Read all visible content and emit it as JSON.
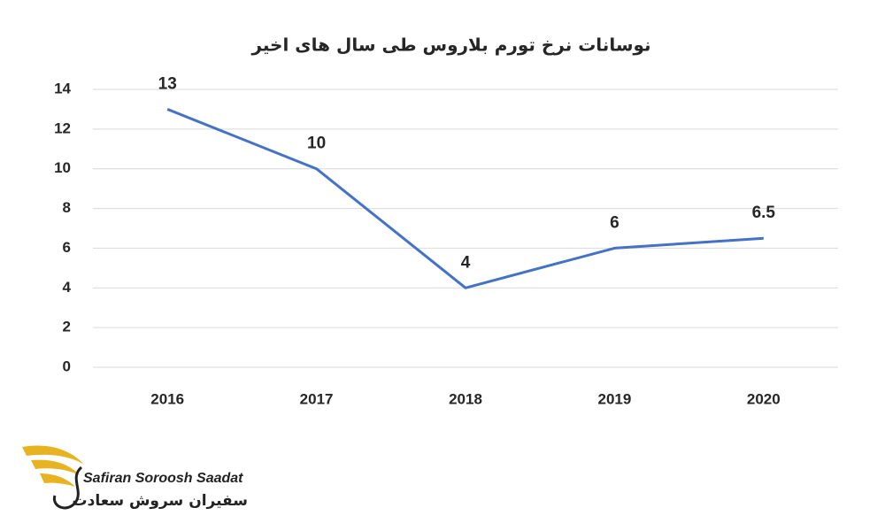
{
  "chart_data": {
    "type": "line",
    "title": "نوسانات نرخ تورم بلاروس طی سال های اخیر",
    "categories": [
      "2016",
      "2017",
      "2018",
      "2019",
      "2020"
    ],
    "series": [
      {
        "color": "#4472c4",
        "values": [
          13,
          10,
          4,
          6,
          6.5
        ]
      }
    ],
    "ylim": [
      0,
      14
    ],
    "yticks": [
      0,
      2,
      4,
      6,
      8,
      10,
      12,
      14
    ],
    "grid": true,
    "data_labels": true
  },
  "logo": {
    "name": "Safiran Soroosh Saadat",
    "name_fa": "سفیران سروش سعادت"
  }
}
